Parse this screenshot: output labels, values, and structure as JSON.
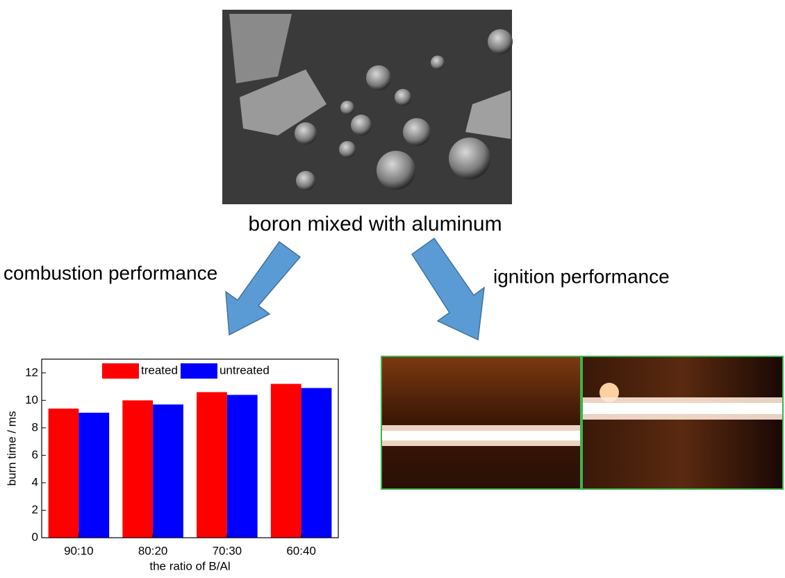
{
  "sem_caption": "boron mixed with aluminum",
  "left_label": "combustion performance",
  "right_label": "ignition performance",
  "chart_data": {
    "type": "bar",
    "x_label": "the ratio of B/Al",
    "y_label": "burn time / ms",
    "categories": [
      "90:10",
      "80:20",
      "70:30",
      "60:40"
    ],
    "series": [
      {
        "name": "treated",
        "color": "#ff0000",
        "values": [
          9.4,
          10.0,
          10.6,
          11.2
        ]
      },
      {
        "name": "untreated",
        "color": "#0000ff",
        "values": [
          9.1,
          9.7,
          10.4,
          10.9
        ]
      }
    ],
    "ylim": [
      0,
      13
    ],
    "yticks": [
      0,
      2,
      4,
      6,
      8,
      10,
      12
    ]
  }
}
